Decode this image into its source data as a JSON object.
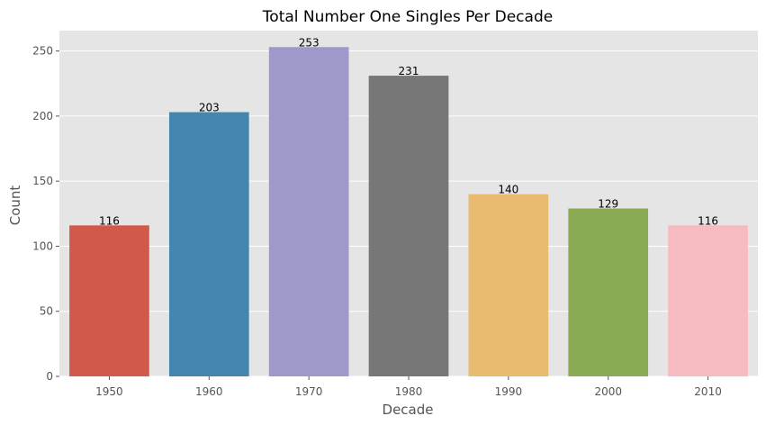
{
  "chart_data": {
    "type": "bar",
    "title": "Total Number One Singles Per Decade",
    "xlabel": "Decade",
    "ylabel": "Count",
    "categories": [
      "1950",
      "1960",
      "1970",
      "1980",
      "1990",
      "2000",
      "2010"
    ],
    "values": [
      116,
      203,
      253,
      231,
      140,
      129,
      116
    ],
    "data_labels": [
      "116",
      "203",
      "253",
      "231",
      "140",
      "129",
      "116"
    ],
    "yticks": [
      0,
      50,
      100,
      150,
      200,
      250
    ],
    "ylim": [
      0,
      265.65
    ],
    "grid": true,
    "legend": "none",
    "colors": [
      "#d0594a",
      "#4486ad",
      "#9e98cb",
      "#777777",
      "#e9bb70",
      "#8aab53",
      "#f6bbc0"
    ],
    "background": "#e5e5e5"
  }
}
